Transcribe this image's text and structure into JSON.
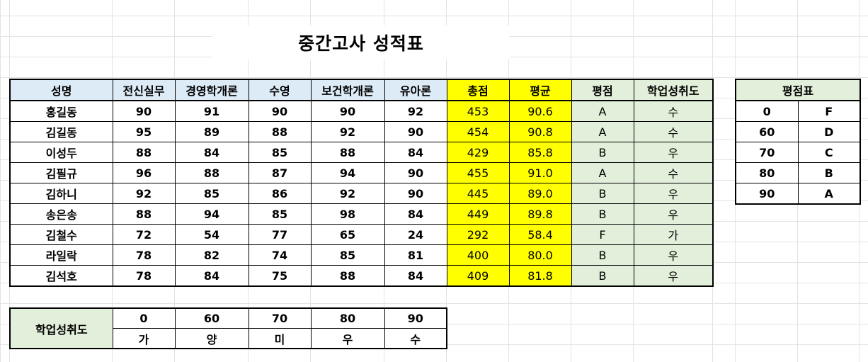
{
  "title": "중간고사 성적표",
  "headers": [
    "성명",
    "전신실무",
    "경영학개론",
    "수영",
    "보건학개론",
    "유아론",
    "총점",
    "평균",
    "평점",
    "학업성취도"
  ],
  "rows": [
    {
      "name": "홍길동",
      "s1": "90",
      "s2": "91",
      "s3": "90",
      "s4": "90",
      "s5": "92",
      "total": "453",
      "avg": "90.6",
      "grade": "A",
      "ach": "수"
    },
    {
      "name": "김길동",
      "s1": "95",
      "s2": "89",
      "s3": "88",
      "s4": "92",
      "s5": "90",
      "total": "454",
      "avg": "90.8",
      "grade": "A",
      "ach": "수"
    },
    {
      "name": "이성두",
      "s1": "88",
      "s2": "84",
      "s3": "85",
      "s4": "88",
      "s5": "84",
      "total": "429",
      "avg": "85.8",
      "grade": "B",
      "ach": "우"
    },
    {
      "name": "김필규",
      "s1": "96",
      "s2": "88",
      "s3": "87",
      "s4": "94",
      "s5": "90",
      "total": "455",
      "avg": "91.0",
      "grade": "A",
      "ach": "수"
    },
    {
      "name": "김하니",
      "s1": "92",
      "s2": "85",
      "s3": "86",
      "s4": "92",
      "s5": "90",
      "total": "445",
      "avg": "89.0",
      "grade": "B",
      "ach": "우"
    },
    {
      "name": "송은송",
      "s1": "88",
      "s2": "94",
      "s3": "85",
      "s4": "98",
      "s5": "84",
      "total": "449",
      "avg": "89.8",
      "grade": "B",
      "ach": "우"
    },
    {
      "name": "김철수",
      "s1": "72",
      "s2": "54",
      "s3": "77",
      "s4": "65",
      "s5": "24",
      "total": "292",
      "avg": "58.4",
      "grade": "F",
      "ach": "가"
    },
    {
      "name": "라일락",
      "s1": "78",
      "s2": "82",
      "s3": "74",
      "s4": "85",
      "s5": "81",
      "total": "400",
      "avg": "80.0",
      "grade": "B",
      "ach": "우"
    },
    {
      "name": "김석호",
      "s1": "78",
      "s2": "84",
      "s3": "75",
      "s4": "88",
      "s5": "84",
      "total": "409",
      "avg": "81.8",
      "grade": "B",
      "ach": "우"
    }
  ],
  "grade_table": {
    "title": "평점표",
    "rows": [
      {
        "score": "0",
        "grade": "F"
      },
      {
        "score": "60",
        "grade": "D"
      },
      {
        "score": "70",
        "grade": "C"
      },
      {
        "score": "80",
        "grade": "B"
      },
      {
        "score": "90",
        "grade": "A"
      }
    ]
  },
  "achievement_table": {
    "label": "학업성취도",
    "scores": [
      "0",
      "60",
      "70",
      "80",
      "90"
    ],
    "levels": [
      "가",
      "양",
      "미",
      "우",
      "수"
    ]
  },
  "colors": {
    "header_blue": "#ddebf7",
    "highlight_yellow": "#ffff00",
    "light_green": "#e2efda"
  }
}
